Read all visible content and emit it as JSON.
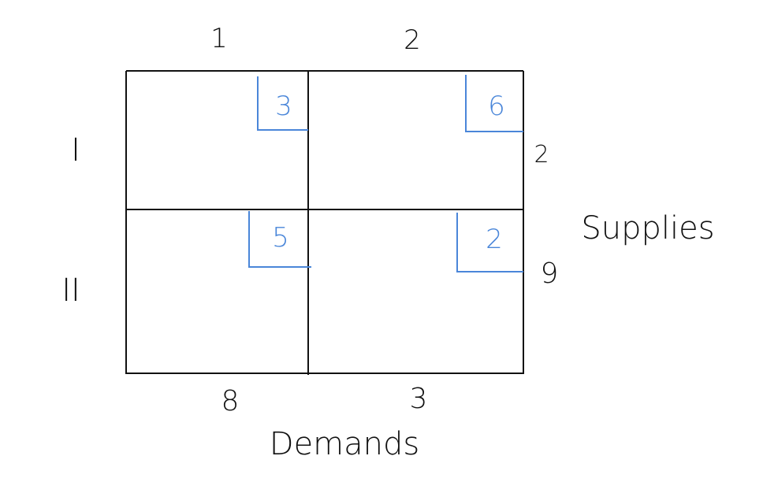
{
  "columns": [
    {
      "label": "1",
      "demand": "8"
    },
    {
      "label": "2",
      "demand": "3"
    }
  ],
  "rows": [
    {
      "label": "I",
      "supply": "2"
    },
    {
      "label": "II",
      "supply": "9"
    }
  ],
  "costs": [
    [
      "3",
      "6"
    ],
    [
      "5",
      "2"
    ]
  ],
  "supplies_label": "Supplies",
  "demands_label": "Demands",
  "colors": {
    "ink": "#111111",
    "cost": "#4a86d9"
  }
}
